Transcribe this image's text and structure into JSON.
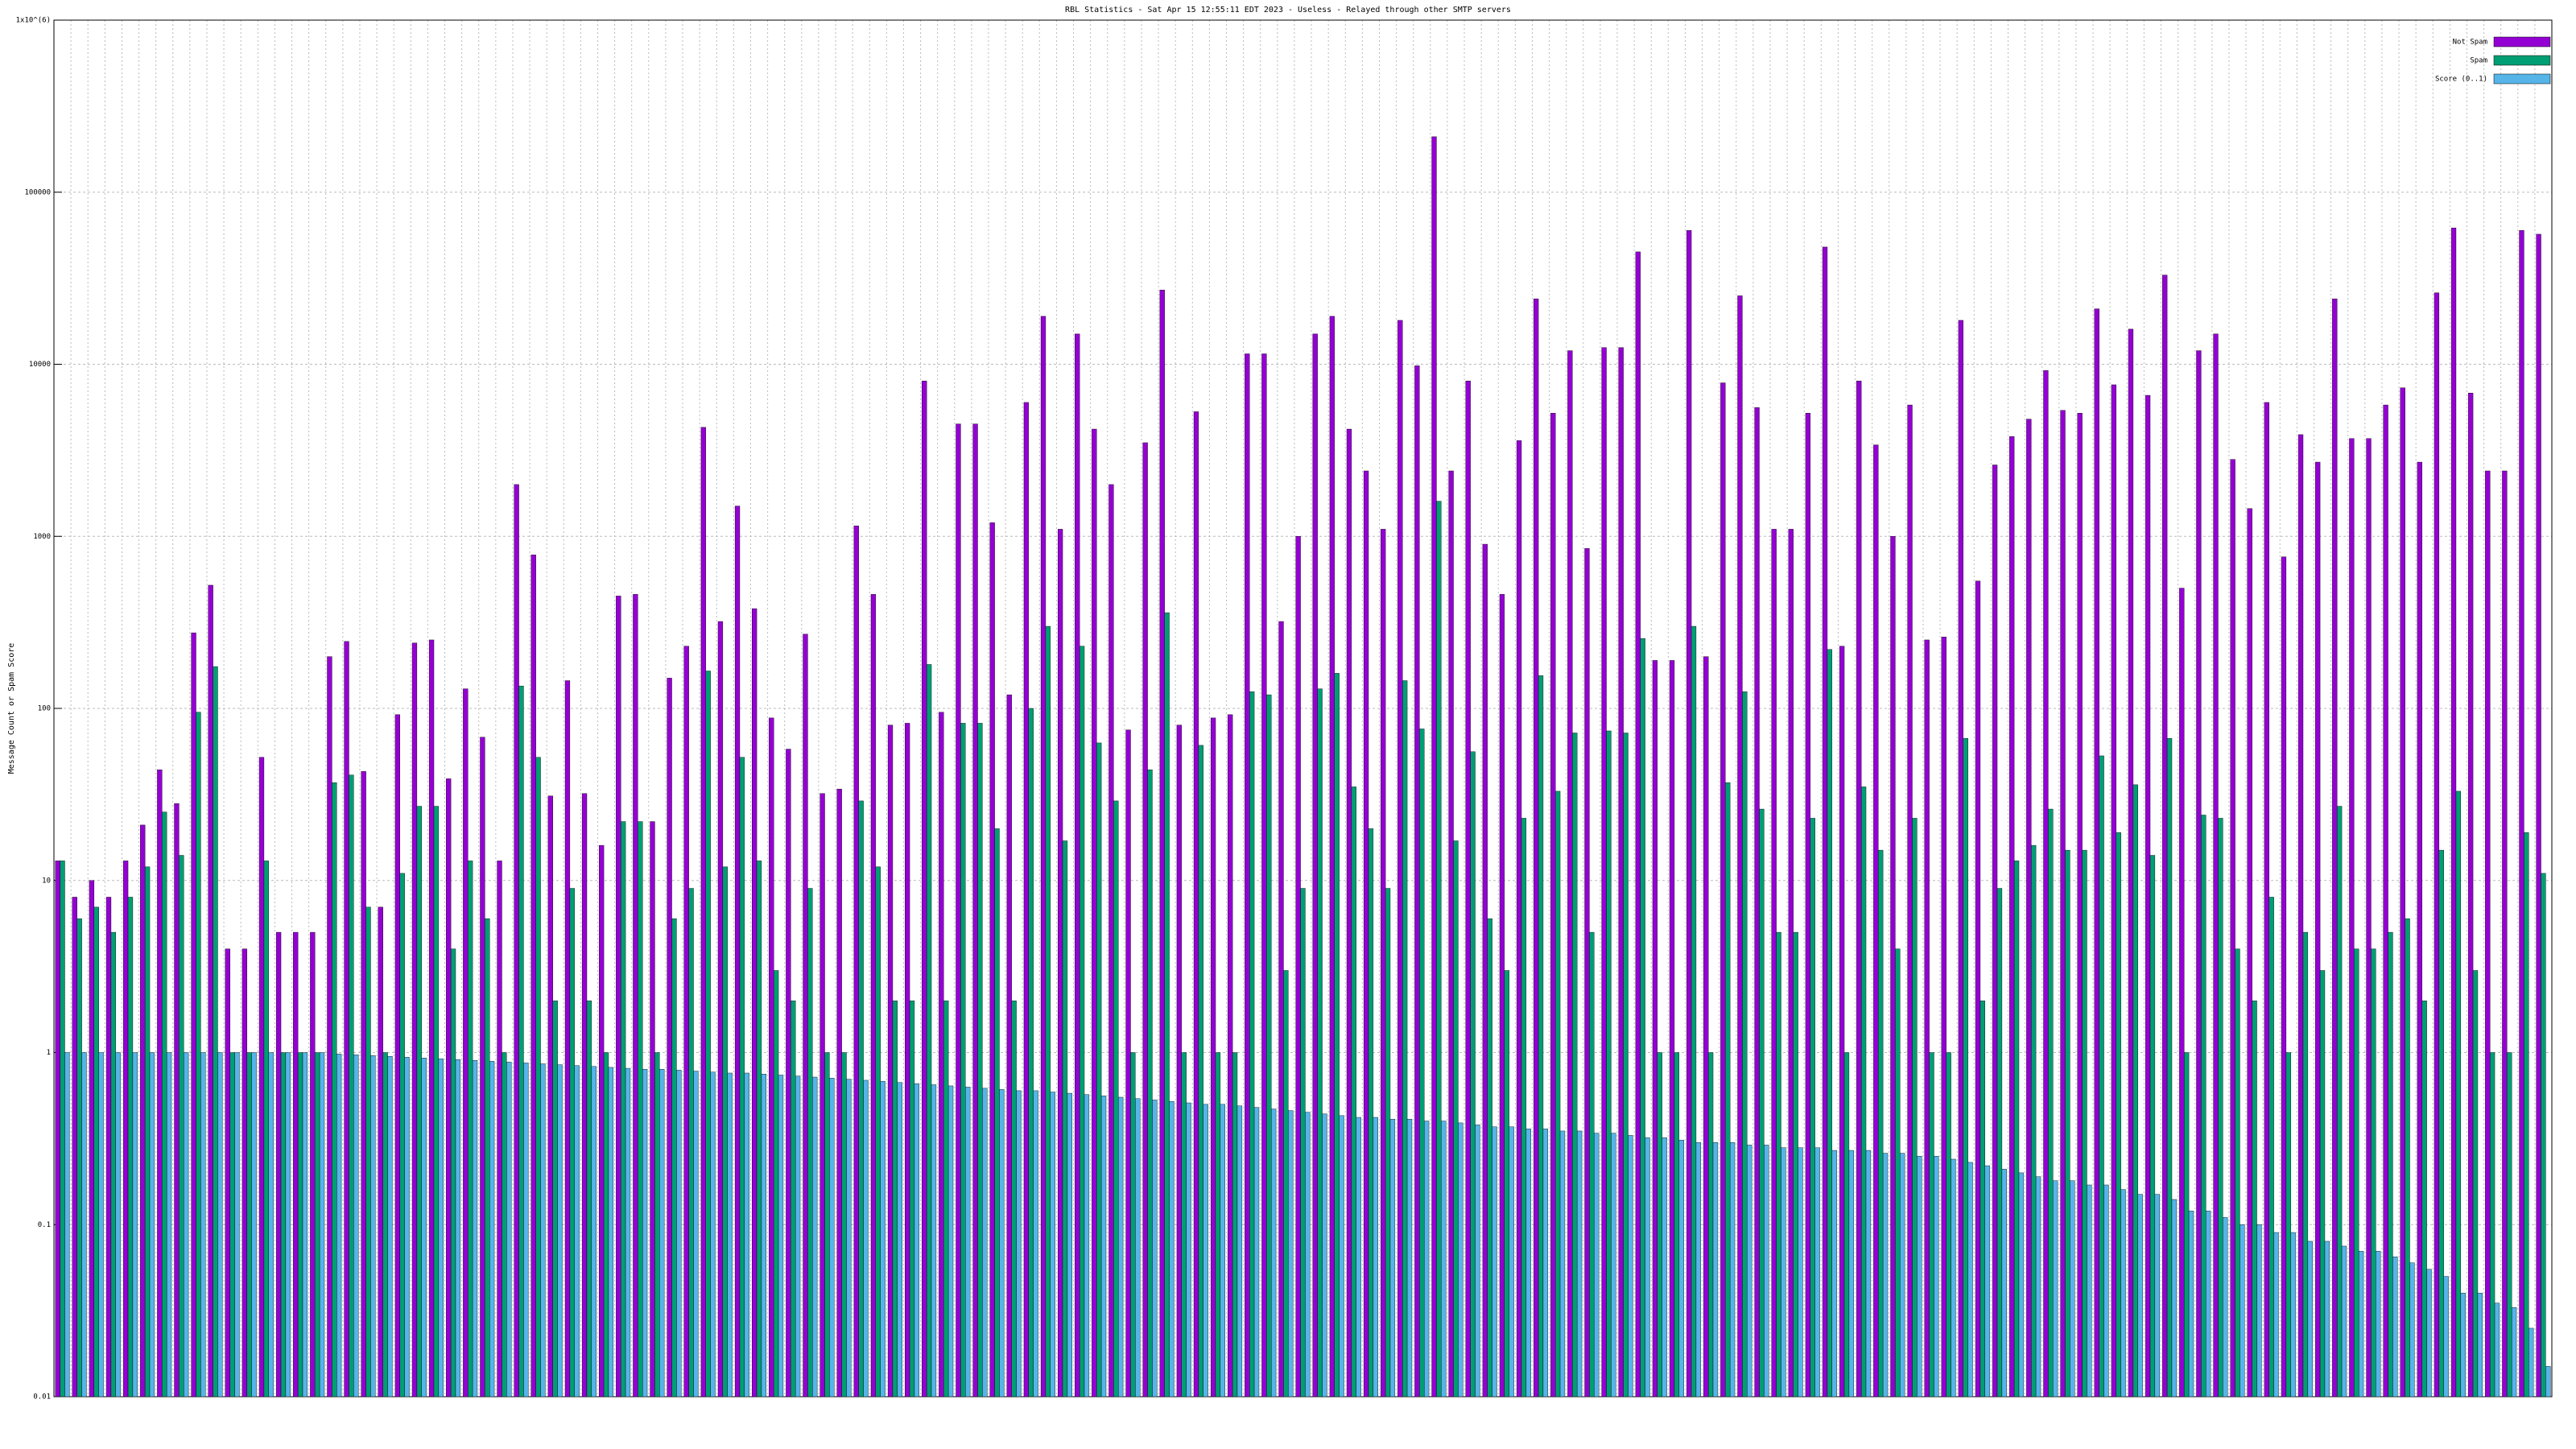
{
  "chart_data": {
    "type": "bar",
    "title": "RBL Statistics - Sat Apr 15 12:55:11 EDT 2023 - Useless - Relayed through other SMTP servers",
    "y_label": "Message Count or Spam Score",
    "log_scale": true,
    "grid": true,
    "legend": "top-right",
    "ylim": [
      0.01,
      1000000
    ],
    "yticks": [
      0.01,
      0.1,
      1,
      10,
      100,
      1000,
      10000,
      100000,
      {
        "value": 1000000,
        "label": "1x10^(6)"
      }
    ],
    "categories": [
      null,
      null,
      null,
      null,
      null,
      null,
      null,
      null,
      null,
      null,
      null,
      null,
      null,
      null,
      null,
      null,
      null,
      null,
      null,
      null,
      null,
      null,
      null,
      null,
      null,
      null,
      null,
      null,
      null,
      null,
      null,
      null,
      null,
      null,
      null,
      null,
      null,
      null,
      null,
      null,
      null,
      null,
      null,
      null,
      null,
      null,
      null,
      null,
      null,
      null,
      null,
      null,
      null,
      null,
      null,
      null,
      null,
      null,
      null,
      null,
      null,
      null,
      null,
      null,
      null,
      null,
      null,
      null,
      null,
      null,
      null,
      null,
      null,
      null,
      null,
      null,
      null,
      null,
      null,
      null,
      null,
      null,
      null,
      null,
      null,
      null,
      null,
      null,
      null,
      null,
      null,
      null,
      null,
      null,
      null,
      null,
      null,
      null,
      null,
      null,
      null,
      null,
      null,
      null,
      null,
      null,
      null,
      null,
      null,
      null,
      null,
      null,
      null,
      null,
      null,
      null,
      null,
      null,
      null,
      null,
      null,
      null,
      null,
      null,
      null,
      null,
      null,
      null,
      null,
      null,
      null,
      null,
      null,
      null,
      null,
      null,
      null,
      null,
      null,
      null,
      null,
      null,
      null,
      null,
      null,
      null,
      null
    ],
    "series": [
      {
        "name": "Not Spam",
        "color": "#9400d3",
        "values": [
          13,
          8,
          10,
          8,
          13,
          21,
          44,
          28,
          275,
          520,
          4,
          4,
          52,
          5,
          5,
          5,
          200,
          245,
          43,
          7,
          92,
          240,
          250,
          39,
          130,
          68,
          13,
          2000,
          780,
          31,
          145,
          32,
          16,
          450,
          460,
          22,
          150,
          230,
          4300,
          320,
          1500,
          380,
          88,
          58,
          270,
          32,
          34,
          1150,
          460,
          80,
          82,
          8000,
          95,
          4500,
          4500,
          1200,
          120,
          6000,
          19000,
          1100,
          15000,
          4200,
          2000,
          75,
          3500,
          27000,
          80,
          5300,
          88,
          92,
          11500,
          11500,
          320,
          1000,
          15000,
          19000,
          4200,
          2400,
          1100,
          18000,
          9800,
          210000,
          2400,
          8000,
          900,
          460,
          3600,
          24000,
          5200,
          12000,
          850,
          12500,
          12500,
          45000,
          190,
          190,
          60000,
          200,
          7800,
          25000,
          5600,
          1100,
          1100,
          5200,
          48000,
          230,
          8000,
          3400,
          1000,
          5800,
          250,
          260,
          18000,
          550,
          2600,
          3800,
          4800,
          9200,
          5400,
          5200,
          21000,
          7600,
          16000,
          6600,
          33000,
          500,
          12000,
          15000,
          2800,
          1450,
          6000,
          760,
          3900,
          2700,
          24000,
          3700,
          3700,
          5800,
          7300,
          2700,
          26000,
          62000,
          6800,
          2400,
          2400,
          60000,
          57000
        ]
      },
      {
        "name": "Spam",
        "color": "#009e73",
        "values": [
          13,
          6,
          7,
          5,
          8,
          12,
          25,
          14,
          95,
          175,
          1,
          1,
          13,
          1,
          1,
          1,
          37,
          41,
          7,
          1,
          11,
          27,
          27,
          4,
          13,
          6,
          1,
          135,
          52,
          2,
          9,
          2,
          1,
          22,
          22,
          1,
          6,
          9,
          165,
          12,
          52,
          13,
          3,
          2,
          9,
          1,
          1,
          29,
          12,
          2,
          2,
          180,
          2,
          82,
          82,
          20,
          2,
          100,
          300,
          17,
          230,
          63,
          29,
          1,
          44,
          360,
          1,
          61,
          1,
          1,
          125,
          120,
          3,
          9,
          130,
          160,
          35,
          20,
          9,
          145,
          76,
          1600,
          17,
          56,
          6,
          3,
          23,
          155,
          33,
          72,
          5,
          74,
          72,
          255,
          1,
          1,
          300,
          1,
          37,
          125,
          26,
          5,
          5,
          23,
          220,
          1,
          35,
          15,
          4,
          23,
          1,
          1,
          67,
          2,
          9,
          13,
          16,
          26,
          15,
          15,
          53,
          19,
          36,
          14,
          67,
          1,
          24,
          23,
          4,
          2,
          8,
          1,
          5,
          3,
          27,
          4,
          4,
          5,
          6,
          2,
          15,
          33,
          3,
          1,
          1,
          19,
          11
        ]
      },
      {
        "name": "Score (0..1)",
        "color": "#56b4e9",
        "values": [
          1,
          1,
          1,
          1,
          1,
          1,
          1,
          1,
          1,
          1,
          1,
          1,
          1,
          1,
          1,
          1,
          0.98,
          0.97,
          0.96,
          0.95,
          0.94,
          0.93,
          0.92,
          0.91,
          0.9,
          0.89,
          0.88,
          0.87,
          0.86,
          0.85,
          0.84,
          0.83,
          0.82,
          0.81,
          0.8,
          0.8,
          0.79,
          0.78,
          0.77,
          0.76,
          0.76,
          0.75,
          0.74,
          0.73,
          0.72,
          0.71,
          0.7,
          0.69,
          0.68,
          0.67,
          0.66,
          0.65,
          0.64,
          0.63,
          0.62,
          0.61,
          0.6,
          0.6,
          0.59,
          0.58,
          0.57,
          0.56,
          0.55,
          0.54,
          0.53,
          0.52,
          0.51,
          0.5,
          0.5,
          0.49,
          0.48,
          0.47,
          0.46,
          0.45,
          0.44,
          0.43,
          0.42,
          0.42,
          0.41,
          0.41,
          0.4,
          0.4,
          0.39,
          0.38,
          0.37,
          0.37,
          0.36,
          0.36,
          0.35,
          0.35,
          0.34,
          0.34,
          0.33,
          0.32,
          0.32,
          0.31,
          0.3,
          0.3,
          0.3,
          0.29,
          0.29,
          0.28,
          0.28,
          0.28,
          0.27,
          0.27,
          0.27,
          0.26,
          0.26,
          0.25,
          0.25,
          0.24,
          0.23,
          0.22,
          0.21,
          0.2,
          0.19,
          0.18,
          0.18,
          0.17,
          0.17,
          0.16,
          0.15,
          0.15,
          0.14,
          0.12,
          0.12,
          0.11,
          0.1,
          0.1,
          0.09,
          0.09,
          0.08,
          0.08,
          0.075,
          0.07,
          0.07,
          0.065,
          0.06,
          0.055,
          0.05,
          0.04,
          0.04,
          0.035,
          0.033,
          0.025,
          0.015
        ]
      }
    ]
  }
}
